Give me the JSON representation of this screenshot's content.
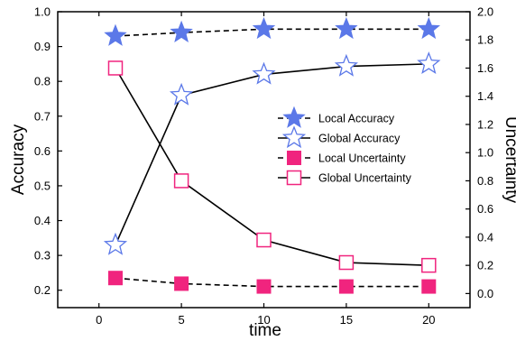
{
  "chart_data": {
    "type": "line",
    "xlabel": "time",
    "ylabel_left": "Accuracy",
    "ylabel_right": "Uncertainty",
    "x_ticks": [
      "0",
      "5",
      "10",
      "15",
      "20"
    ],
    "y_left_ticks": [
      "0.2",
      "0.3",
      "0.4",
      "0.5",
      "0.6",
      "0.7",
      "0.8",
      "0.9",
      "1.0"
    ],
    "y_right_ticks": [
      "0.0",
      "0.2",
      "0.4",
      "0.6",
      "0.8",
      "1.0",
      "1.2",
      "1.4",
      "1.6",
      "1.8",
      "2.0"
    ],
    "xlim": [
      -2.5,
      22.5
    ],
    "ylim_left": [
      0.15,
      1.0
    ],
    "ylim_right": [
      -0.1,
      2.0
    ],
    "x": [
      1,
      5,
      10,
      15,
      20
    ],
    "series": [
      {
        "name": "Local Accuracy",
        "axis": "left",
        "values": [
          0.93,
          0.94,
          0.95,
          0.95,
          0.95
        ],
        "marker": "star-filled",
        "line": "dashed",
        "color": "#5b78e8"
      },
      {
        "name": "Global Accuracy",
        "axis": "left",
        "values": [
          0.33,
          0.76,
          0.82,
          0.843,
          0.85
        ],
        "marker": "star-open",
        "line": "solid",
        "color": "#5b78e8"
      },
      {
        "name": "Local Uncertainty",
        "axis": "right",
        "values": [
          0.11,
          0.07,
          0.05,
          0.05,
          0.05
        ],
        "marker": "square-filled",
        "line": "dashed",
        "color": "#f0247e"
      },
      {
        "name": "Global Uncertainty",
        "axis": "right",
        "values": [
          1.6,
          0.8,
          0.38,
          0.22,
          0.2
        ],
        "marker": "square-open",
        "line": "solid",
        "color": "#f0247e"
      }
    ],
    "legend_position": "center-right",
    "grid": false
  }
}
